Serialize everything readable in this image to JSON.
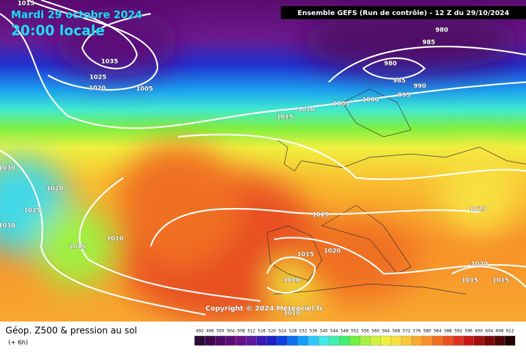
{
  "header": {
    "title": "Mardi 29 octobre 2024",
    "local_time": "20:00 locale",
    "run": "Ensemble GEFS (Run de contrôle) - 12 Z du 29/10/2024"
  },
  "isobar_labels": [
    1015,
    1030,
    1035,
    1025,
    1020,
    1005,
    980,
    985,
    980,
    985,
    990,
    995,
    1000,
    1005,
    1010,
    1015,
    1030,
    1020,
    1025,
    1015,
    1010,
    1025,
    1015,
    1020,
    1010,
    1010,
    1025,
    1020,
    1015,
    1015
  ],
  "copyright": "Copyright © 2024 Meteociel.fr",
  "footer": {
    "title": "Géop. Z500 & pression au sol",
    "lead": "(+ 6h)"
  },
  "legend": {
    "values": [
      492,
      496,
      500,
      504,
      508,
      512,
      516,
      520,
      524,
      528,
      532,
      536,
      540,
      544,
      548,
      552,
      556,
      560,
      564,
      568,
      572,
      576,
      580,
      584,
      588,
      592,
      596,
      600,
      604,
      608,
      612
    ],
    "colors": [
      "#2b0a36",
      "#3d0a4e",
      "#4f0b66",
      "#5c0c78",
      "#6a0f8a",
      "#5a1a9e",
      "#3a1ab0",
      "#1a20c8",
      "#0a40e0",
      "#0a70f0",
      "#10a0f8",
      "#30c8f8",
      "#40e8e8",
      "#40f0b0",
      "#40f070",
      "#70f040",
      "#a8f040",
      "#d0f040",
      "#f0f040",
      "#f8e040",
      "#f8c838",
      "#f8a830",
      "#f89028",
      "#f07020",
      "#e85020",
      "#e03020",
      "#c81818",
      "#a01010",
      "#780808",
      "#500404",
      "#200000"
    ]
  }
}
